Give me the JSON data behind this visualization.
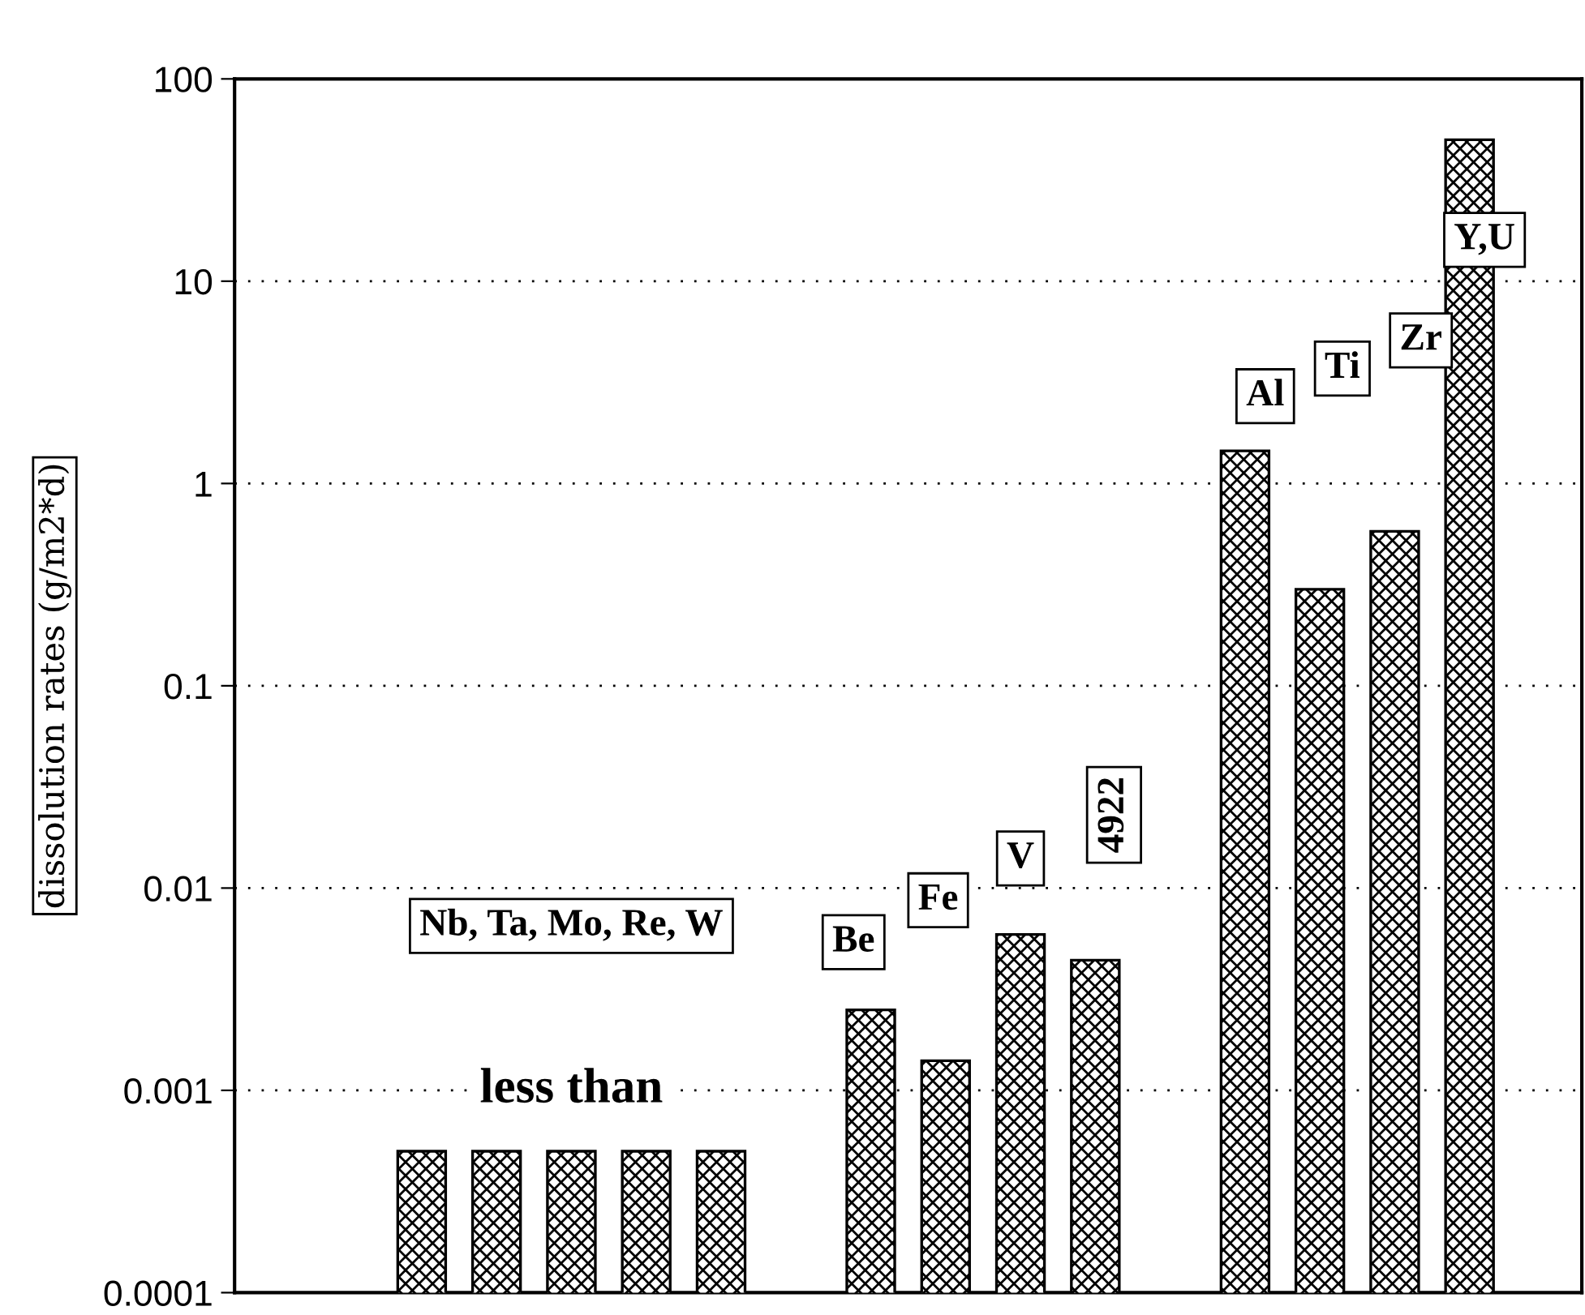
{
  "chart_data": {
    "type": "bar",
    "ylabel": "dissolution rates (g/m2*d)",
    "categories": [
      null,
      null,
      null,
      null,
      null,
      null,
      null,
      null,
      null,
      null,
      null,
      null,
      null,
      null,
      null,
      null,
      null,
      null
    ],
    "values": [
      null,
      null,
      0.0005,
      0.0005,
      0.0005,
      0.0005,
      0.0005,
      null,
      0.0025,
      0.0014,
      0.0059,
      0.0044,
      null,
      1.45,
      0.3,
      0.58,
      50,
      null
    ],
    "color": "#000000",
    "log": "y",
    "ylim": [
      0.0001,
      100
    ],
    "yticks": [
      0.0001,
      0.001,
      0.01,
      0.1,
      1,
      10,
      100
    ],
    "grid": "y",
    "tick_labels": "y",
    "annotations": [
      "Nb, Ta, Mo, Re, W",
      "less than",
      "Be",
      "Fe",
      "V",
      "4922",
      "Al",
      "Ti",
      "Zr",
      "Y,U"
    ]
  }
}
